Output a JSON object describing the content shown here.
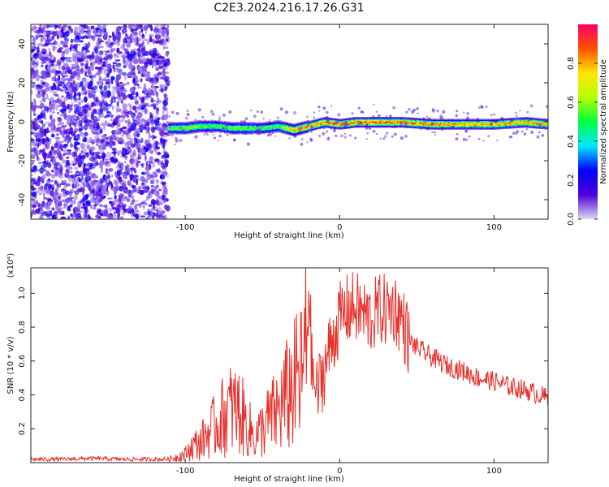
{
  "title": "C2E3.2024.216.17.26.G31",
  "chart_data": [
    {
      "type": "heatmap",
      "title": "C2E3.2024.216.17.26.G31",
      "xlabel": "Height of straight line (km)",
      "ylabel": "Frequency (Hz)",
      "xlim": [
        -200,
        135
      ],
      "ylim": [
        -50,
        50
      ],
      "x_ticks": [
        -100,
        0,
        100
      ],
      "y_ticks": [
        -40,
        -20,
        0,
        20,
        40
      ],
      "colorbar": {
        "label": "Normalized spectral amplitude",
        "range": [
          0,
          1
        ],
        "ticks": [
          0.0,
          0.2,
          0.4,
          0.6,
          0.8
        ],
        "colors": [
          "#dcd8f2",
          "#5000d8",
          "#0000ff",
          "#00e6ff",
          "#00ff40",
          "#b4ff00",
          "#ffe600",
          "#ff5000",
          "#ff0064"
        ]
      },
      "noise_region": {
        "x_range": [
          -200,
          -111
        ],
        "amplitude": 0.15
      },
      "ridge": {
        "x": [
          -111,
          -100,
          -90,
          -80,
          -70,
          -60,
          -50,
          -40,
          -30,
          -20,
          -10,
          0,
          10,
          20,
          40,
          60,
          80,
          100,
          120,
          135
        ],
        "frequency": [
          -3,
          -3,
          -2,
          -2,
          -3,
          -3,
          -3,
          -2,
          -4,
          -2,
          0,
          -1,
          0,
          0,
          0,
          -1,
          -1,
          -1,
          0,
          -1
        ],
        "peak_amplitude": [
          0.55,
          0.65,
          0.6,
          0.55,
          0.6,
          0.6,
          0.55,
          0.55,
          0.85,
          0.85,
          0.9,
          0.95,
          0.9,
          0.95,
          0.9,
          0.9,
          0.85,
          0.85,
          0.85,
          0.85
        ]
      }
    },
    {
      "type": "line",
      "xlabel": "Height of straight line (km)",
      "ylabel": "SNR (10 * v/v)",
      "y_multiplier": "(x10⁴)",
      "xlim": [
        -200,
        135
      ],
      "ylim": [
        0,
        1.15
      ],
      "x_ticks": [
        -100,
        0,
        100
      ],
      "y_ticks": [
        0.2,
        0.4,
        0.6,
        0.8,
        1.0
      ],
      "color": "#e8302a",
      "x": [
        -200,
        -180,
        -160,
        -140,
        -120,
        -110,
        -100,
        -95,
        -90,
        -85,
        -80,
        -75,
        -70,
        -65,
        -60,
        -55,
        -50,
        -45,
        -40,
        -35,
        -30,
        -25,
        -21,
        -20,
        -18,
        -15,
        -10,
        -5,
        0,
        5,
        10,
        15,
        20,
        25,
        30,
        35,
        40,
        45,
        50,
        60,
        70,
        80,
        90,
        100,
        110,
        120,
        130,
        135
      ],
      "y": [
        0.02,
        0.02,
        0.025,
        0.02,
        0.02,
        0.02,
        0.05,
        0.1,
        0.12,
        0.18,
        0.22,
        0.28,
        0.32,
        0.3,
        0.22,
        0.15,
        0.2,
        0.26,
        0.3,
        0.38,
        0.45,
        0.5,
        0.72,
        1.13,
        0.55,
        0.4,
        0.55,
        0.72,
        0.85,
        0.9,
        0.92,
        0.88,
        0.85,
        0.9,
        0.9,
        0.92,
        0.85,
        0.72,
        0.68,
        0.62,
        0.57,
        0.54,
        0.5,
        0.48,
        0.45,
        0.43,
        0.4,
        0.38
      ]
    }
  ]
}
